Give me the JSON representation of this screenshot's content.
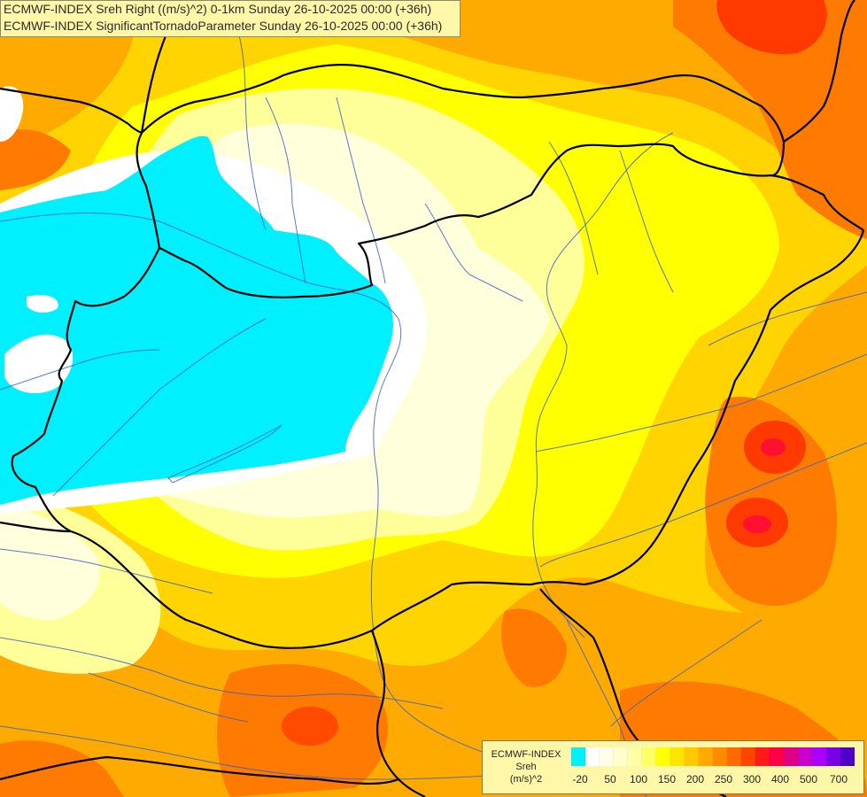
{
  "header": {
    "line1": "ECMWF-INDEX Sreh Right ((m/s)^2) 0-1km Sunday 26-10-2025 00:00 (+36h)",
    "line2": "ECMWF-INDEX SignificantTornadoParameter Sunday 26-10-2025 00:00 (+36h)"
  },
  "legend": {
    "source": "ECMWF-INDEX",
    "variable": "Sreh",
    "unit": "(m/s)^2",
    "ticks": [
      "-20",
      "50",
      "100",
      "150",
      "200",
      "250",
      "300",
      "400",
      "500",
      "700"
    ],
    "swatch_colors": [
      "#00f0ff",
      "#ffffff",
      "#fffde8",
      "#ffffcc",
      "#ffffa8",
      "#ffff66",
      "#ffff00",
      "#ffe400",
      "#ffc800",
      "#ffaa00",
      "#ff8c00",
      "#ff6a00",
      "#ff4400",
      "#ff1a1a",
      "#ff0048",
      "#e00088",
      "#cc00cc",
      "#aa00ff",
      "#7a00e6",
      "#5000c8"
    ]
  },
  "colors": {
    "cyan": "#00f0ff",
    "white": "#ffffff",
    "cream": "#ffffdc",
    "pale_yellow": "#ffff9a",
    "yellow": "#ffff00",
    "gold": "#ffd700",
    "orange": "#ffaa00",
    "dark_orange": "#ff7a00",
    "red_orange": "#ff4a00",
    "red": "#ff1a00",
    "border_line": "#000000",
    "river_line": "#3a62c9"
  }
}
